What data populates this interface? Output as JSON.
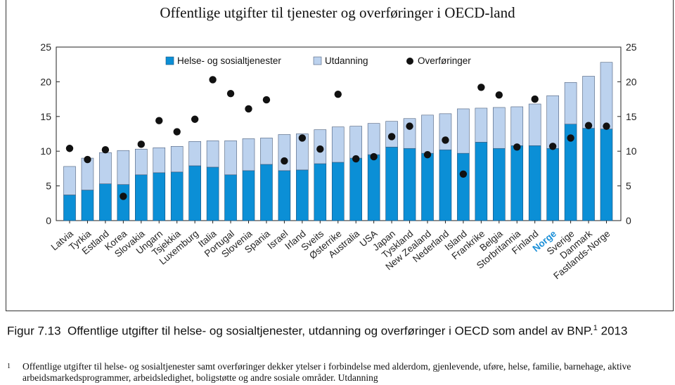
{
  "chart_data": {
    "type": "bar",
    "title": "Offentlige utgifter til tjenester og overføringer i OECD-land",
    "ylim": [
      0,
      25
    ],
    "yticks": [
      0,
      5,
      10,
      15,
      20,
      25
    ],
    "legend": [
      "Helse- og sosialtjenester",
      "Utdanning",
      "Overføringer"
    ],
    "legend_placement": "top-left",
    "highlight_category": "Norge",
    "colors": {
      "health": "#0b8fd6",
      "education": "#bcd2ee",
      "transfers": "#111111",
      "highlight": "#1a8fd8"
    },
    "categories": [
      "Latvia",
      "Tyrkia",
      "Estland",
      "Korea",
      "Slovakia",
      "Ungarn",
      "Tsjekkia",
      "Luxemburg",
      "Italia",
      "Portugal",
      "Slovenia",
      "Spania",
      "Israel",
      "Irland",
      "Sveits",
      "Østerrike",
      "Australia",
      "USA",
      "Japan",
      "Tyskland",
      "New Zealand",
      "Nederland",
      "Island",
      "Frankrike",
      "Belgia",
      "Storbritannia",
      "Finland",
      "Norge",
      "Sverige",
      "Danmark",
      "Fastlands-Norge"
    ],
    "series": [
      {
        "name": "Helse- og sosialtjenester",
        "kind": "stacked-bar",
        "values": [
          3.7,
          4.4,
          5.3,
          5.2,
          6.6,
          6.9,
          7.0,
          7.9,
          7.7,
          6.6,
          7.2,
          8.1,
          7.2,
          7.3,
          8.2,
          8.4,
          9.0,
          9.5,
          10.6,
          10.4,
          9.7,
          10.2,
          9.7,
          11.3,
          10.4,
          10.8,
          10.8,
          10.4,
          13.9,
          13.3,
          13.2
        ]
      },
      {
        "name": "Utdanning",
        "kind": "stacked-bar",
        "values": [
          4.1,
          4.6,
          4.5,
          4.9,
          3.7,
          3.6,
          3.7,
          3.5,
          3.8,
          4.9,
          4.6,
          3.8,
          5.2,
          5.2,
          4.9,
          5.1,
          4.6,
          4.5,
          3.7,
          4.3,
          5.5,
          5.2,
          6.4,
          4.9,
          5.9,
          5.6,
          6.0,
          7.6,
          6.0,
          7.5,
          9.6
        ]
      },
      {
        "name": "Overføringer",
        "kind": "dot",
        "values": [
          10.4,
          8.8,
          10.2,
          3.5,
          11.0,
          14.4,
          12.8,
          14.6,
          20.3,
          18.3,
          16.1,
          17.4,
          8.6,
          11.9,
          10.3,
          18.2,
          8.9,
          9.2,
          12.1,
          13.6,
          9.5,
          11.6,
          6.7,
          19.2,
          18.1,
          10.6,
          17.5,
          10.7,
          11.9,
          13.7,
          13.6
        ]
      }
    ]
  },
  "caption": {
    "prefix": "Figur 7.13",
    "text": "Offentlige utgifter til helse- og sosialtjenester, utdanning og overføringer i OECD som andel av BNP.",
    "sup": "1",
    "year": "2013"
  },
  "footnote": {
    "mark": "1",
    "text": "Offentlige utgifter til helse- og sosialtjenester samt overføringer dekker ytelser i forbindelse med alderdom, gjenlevende, uføre, helse, familie, barnehage, aktive arbeidsmarkedsprogrammer, arbeidsledighet, boligstøtte og andre sosiale områder. Utdanning"
  }
}
